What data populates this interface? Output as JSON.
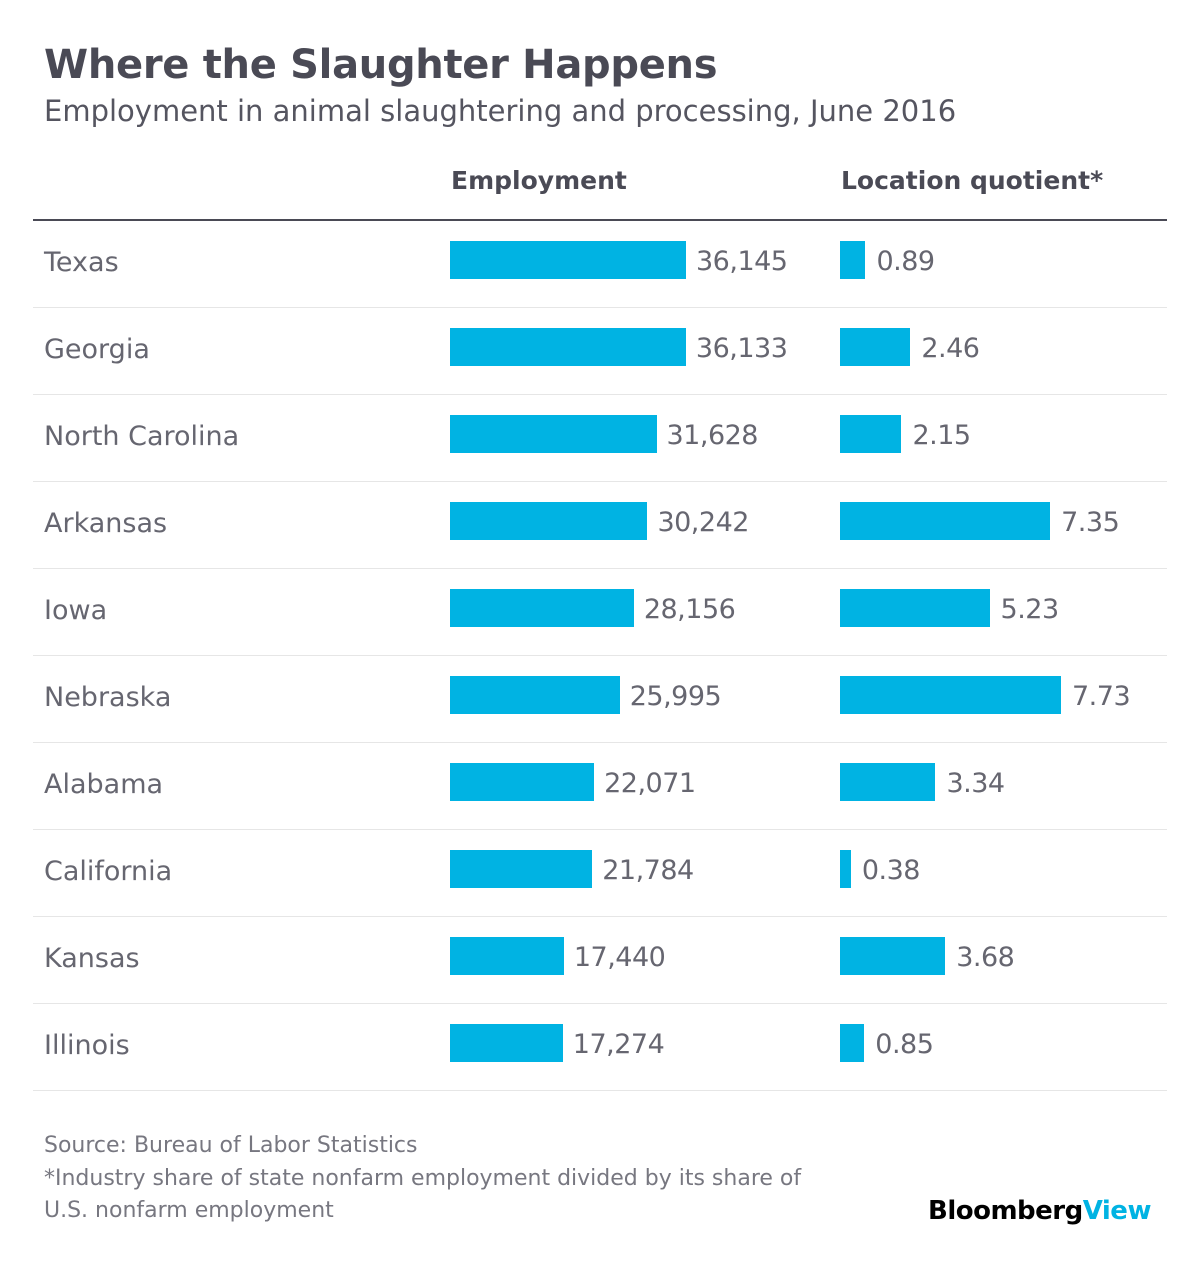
{
  "chart_data": {
    "type": "bar",
    "title": "Where the Slaughter Happens",
    "subtitle": "Employment in animal slaughtering and processing, June 2016",
    "categories": [
      "Texas",
      "Georgia",
      "North Carolina",
      "Arkansas",
      "Iowa",
      "Nebraska",
      "Alabama",
      "California",
      "Kansas",
      "Illinois"
    ],
    "series": [
      {
        "name": "Employment",
        "values": [
          36145,
          36133,
          31628,
          30242,
          28156,
          25995,
          22071,
          21784,
          17440,
          17274
        ],
        "labels": [
          "36,145",
          "36,133",
          "31,628",
          "30,242",
          "28,156",
          "25,995",
          "22,071",
          "21,784",
          "17,440",
          "17,274"
        ],
        "color": "#00b3e3"
      },
      {
        "name": "Location quotient*",
        "values": [
          0.89,
          2.46,
          2.15,
          7.35,
          5.23,
          7.73,
          3.34,
          0.38,
          3.68,
          0.85
        ],
        "labels": [
          "0.89",
          "2.46",
          "2.15",
          "7.35",
          "5.23",
          "7.73",
          "3.34",
          "0.38",
          "3.68",
          "0.85"
        ],
        "color": "#00b3e3"
      }
    ],
    "grid": false
  },
  "footer": {
    "source": "Source: Bureau of Labor Statistics",
    "note_line1": "*Industry share of state nonfarm employment divided by its share of",
    "note_line2": "U.S. nonfarm employment"
  },
  "logo": {
    "brand": "Bloomberg",
    "suffix": "View"
  }
}
